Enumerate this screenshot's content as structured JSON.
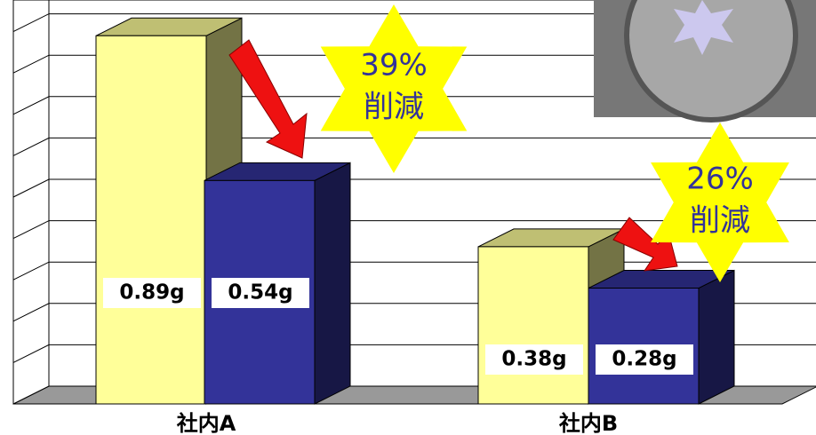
{
  "chart_data": {
    "type": "bar3d",
    "categories": [
      "社内A",
      "社内B"
    ],
    "series": [
      {
        "color": "#ffff99",
        "values": [
          0.89,
          0.38
        ],
        "value_labels": [
          "0.89g",
          "0.38g"
        ]
      },
      {
        "color": "#333399",
        "values": [
          0.54,
          0.28
        ],
        "value_labels": [
          "0.54g",
          "0.28g"
        ]
      }
    ],
    "ylim": [
      0,
      1
    ],
    "grid": true,
    "annotations": [
      {
        "text": "39%",
        "subtext": "削減"
      },
      {
        "text": "26%",
        "subtext": "削減"
      }
    ]
  }
}
